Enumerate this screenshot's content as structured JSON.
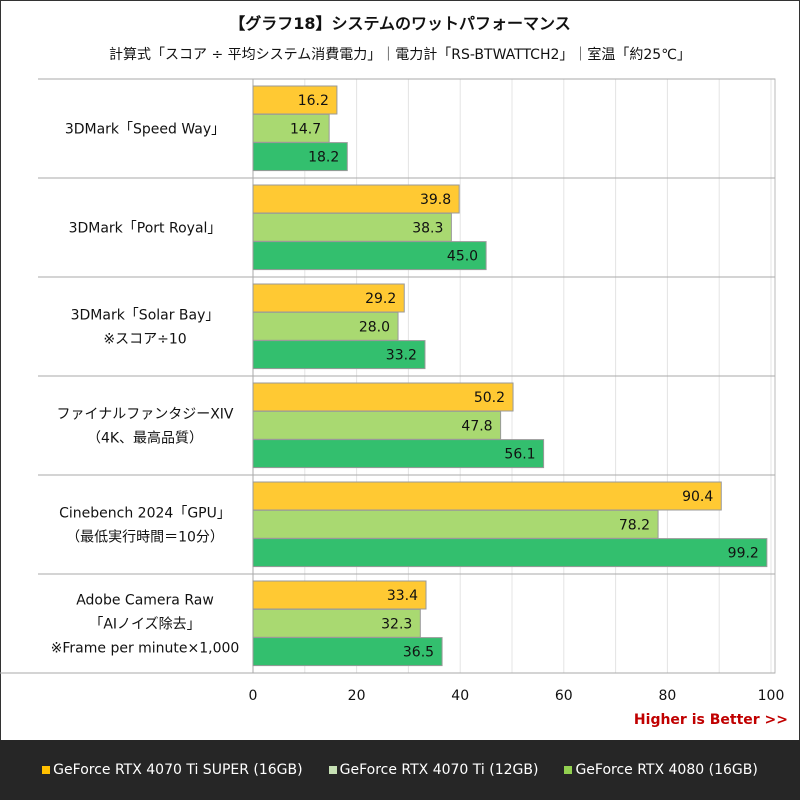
{
  "title": "【グラフ18】システムのワットパフォーマンス",
  "subtitle": "計算式「スコア ÷ 平均システム消費電力」｜電力計「RS-BTWATTCH2」｜室温「約25℃」",
  "higher_is_better": "Higher is Better >>",
  "chart_data": {
    "type": "bar",
    "orientation": "horizontal",
    "categories": [
      [
        "3DMark「Speed Way」"
      ],
      [
        "3DMark「Port Royal」"
      ],
      [
        "3DMark「Solar Bay」",
        "※スコア÷10"
      ],
      [
        "ファイナルファンタジーXIV",
        "（4K、最高品質）"
      ],
      [
        "Cinebench 2024「GPU」",
        "（最低実行時間＝10分）"
      ],
      [
        "Adobe Camera Raw",
        "「AIノイズ除去」",
        "※Frame per minute×1,000"
      ]
    ],
    "series": [
      {
        "name": "GeForce RTX 4070 Ti SUPER (16GB)",
        "color": "#FFC933",
        "legend_color": "#FFC000",
        "values": [
          16.2,
          39.8,
          29.2,
          50.2,
          90.4,
          33.4
        ]
      },
      {
        "name": "GeForce RTX 4070 Ti (12GB)",
        "color": "#A9D971",
        "legend_color": "#C6E0B4",
        "values": [
          14.7,
          38.3,
          28.0,
          47.8,
          78.2,
          32.3
        ]
      },
      {
        "name": "GeForce RTX 4080 (16GB)",
        "color": "#33BF6E",
        "legend_color": "#92D050",
        "values": [
          18.2,
          45.0,
          33.2,
          56.1,
          99.2,
          36.5
        ]
      }
    ],
    "xlim": [
      0,
      100
    ],
    "xticks": [
      "0",
      "20",
      "40",
      "60",
      "80",
      "100"
    ],
    "grid": true,
    "legend_position": "bottom"
  }
}
